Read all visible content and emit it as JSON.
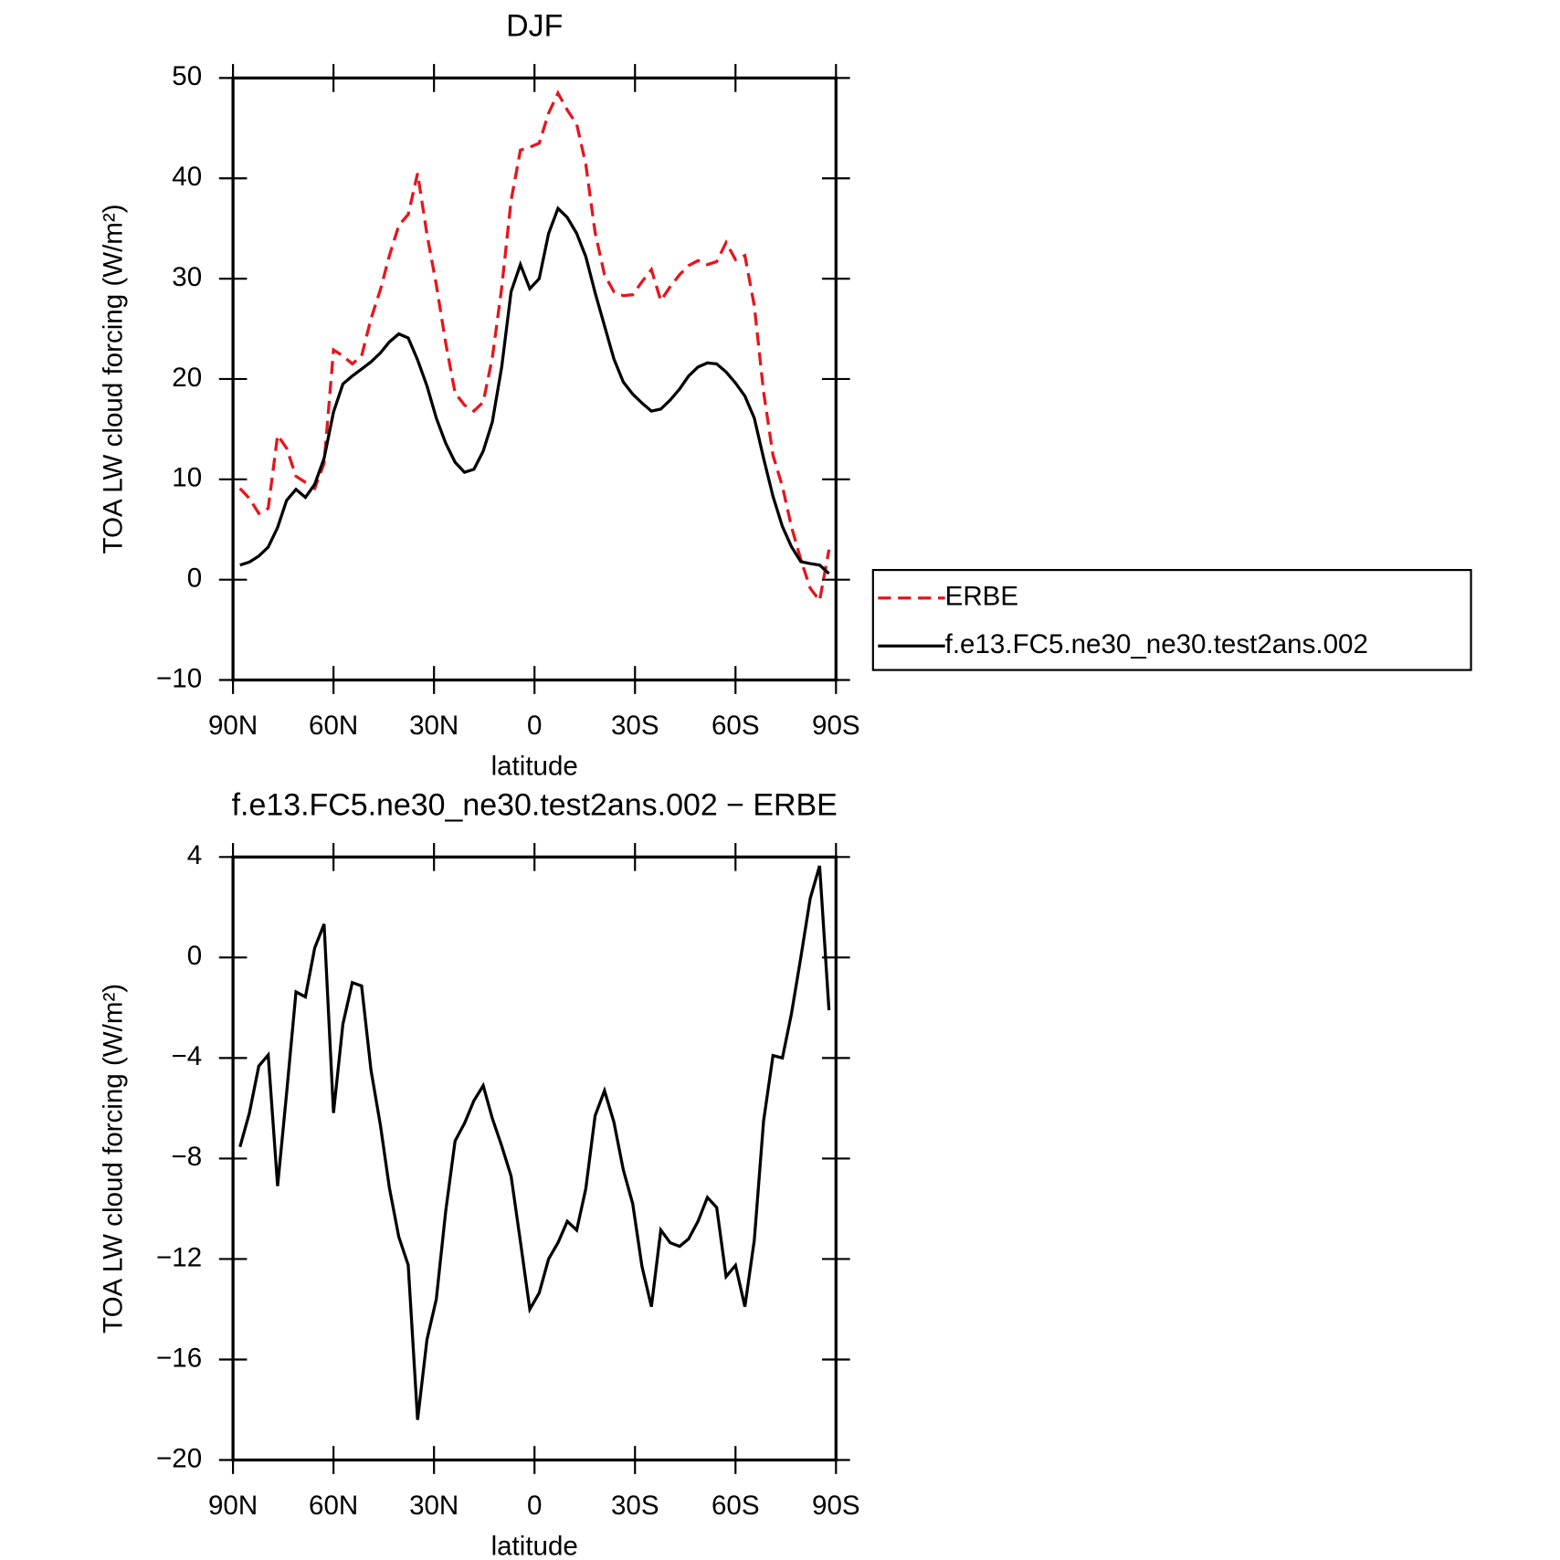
{
  "chart_data": [
    {
      "type": "line",
      "title": "DJF",
      "xlabel": "latitude",
      "ylabel": "TOA LW cloud forcing (W/m²)",
      "x": [
        87.9,
        85.1,
        82.3,
        79.5,
        76.7,
        74.0,
        71.2,
        68.4,
        65.6,
        62.8,
        60.0,
        57.2,
        54.4,
        51.6,
        48.8,
        46.0,
        43.3,
        40.5,
        37.7,
        34.9,
        32.1,
        29.3,
        26.5,
        23.7,
        20.9,
        18.1,
        15.3,
        12.6,
        9.8,
        7.0,
        4.2,
        1.4,
        -1.4,
        -4.2,
        -7.0,
        -9.8,
        -12.6,
        -15.3,
        -18.1,
        -20.9,
        -23.7,
        -26.5,
        -29.3,
        -32.1,
        -34.9,
        -37.7,
        -40.5,
        -43.3,
        -46.0,
        -48.8,
        -51.6,
        -54.4,
        -57.2,
        -60.0,
        -62.8,
        -65.6,
        -68.4,
        -71.2,
        -74.0,
        -76.7,
        -79.5,
        -82.3,
        -85.1,
        -87.9
      ],
      "series": [
        {
          "name": "ERBE",
          "color": "#e8141c",
          "dash": "dashed",
          "values": [
            9.1,
            8.1,
            6.6,
            7.1,
            14.4,
            13.1,
            10.3,
            9.7,
            9.1,
            11.6,
            22.9,
            22.3,
            21.5,
            22.3,
            26.0,
            28.9,
            32.3,
            35.3,
            36.4,
            40.5,
            34.4,
            29.4,
            23.6,
            18.6,
            17.4,
            16.8,
            17.7,
            22.1,
            29.1,
            37.8,
            42.8,
            43.1,
            43.5,
            46.5,
            48.5,
            46.8,
            45.4,
            41.4,
            34.6,
            30.4,
            28.7,
            28.3,
            28.4,
            29.7,
            30.9,
            27.8,
            29.2,
            30.4,
            31.3,
            31.8,
            31.4,
            31.7,
            33.6,
            31.9,
            32.3,
            27.3,
            18.7,
            12.4,
            9.3,
            5.3,
            2.0,
            -0.85,
            -2.1,
            3.0
          ]
        },
        {
          "name": "f.e13.FC5.ne30_ne30.test2ans.002",
          "color": "#000000",
          "dash": "solid",
          "values": [
            1.45,
            1.75,
            2.35,
            3.25,
            5.2,
            7.9,
            9.0,
            8.2,
            9.5,
            12.1,
            16.7,
            19.5,
            20.3,
            21.0,
            21.7,
            22.6,
            23.7,
            24.5,
            24.1,
            21.9,
            19.3,
            16.1,
            13.6,
            11.7,
            10.7,
            11.0,
            12.8,
            15.7,
            21.2,
            28.7,
            31.4,
            29.0,
            30.0,
            34.5,
            37.0,
            36.1,
            34.5,
            32.2,
            28.6,
            25.3,
            22.0,
            19.7,
            18.5,
            17.6,
            16.8,
            17.0,
            17.9,
            19.0,
            20.3,
            21.2,
            21.6,
            21.5,
            20.7,
            19.6,
            18.3,
            16.1,
            12.1,
            8.3,
            5.3,
            3.3,
            1.8,
            1.6,
            1.45,
            0.6
          ]
        }
      ],
      "xlim": [
        90,
        -90
      ],
      "xticks": [
        {
          "value": 90,
          "label": "90N"
        },
        {
          "value": 60,
          "label": "60N"
        },
        {
          "value": 30,
          "label": "30N"
        },
        0,
        {
          "value": -30,
          "label": "30S"
        },
        {
          "value": -60,
          "label": "60S"
        },
        {
          "value": -90,
          "label": "90S"
        }
      ],
      "ylim": [
        -10,
        50
      ],
      "yticks": [
        {
          "value": -10,
          "label": "−10"
        },
        0,
        10,
        20,
        30,
        40,
        50
      ],
      "legend": "outside right"
    },
    {
      "type": "line",
      "title": "f.e13.FC5.ne30_ne30.test2ans.002 − ERBE",
      "xlabel": "latitude",
      "ylabel": "TOA LW cloud forcing (W/m²)",
      "x": [
        87.9,
        85.1,
        82.3,
        79.5,
        76.7,
        74.0,
        71.2,
        68.4,
        65.6,
        62.8,
        60.0,
        57.2,
        54.4,
        51.6,
        48.8,
        46.0,
        43.3,
        40.5,
        37.7,
        34.9,
        32.1,
        29.3,
        26.5,
        23.7,
        20.9,
        18.1,
        15.3,
        12.6,
        9.8,
        7.0,
        4.2,
        1.4,
        -1.4,
        -4.2,
        -7.0,
        -9.8,
        -12.6,
        -15.3,
        -18.1,
        -20.9,
        -23.7,
        -26.5,
        -29.3,
        -32.1,
        -34.9,
        -37.7,
        -40.5,
        -43.3,
        -46.0,
        -48.8,
        -51.6,
        -54.4,
        -57.2,
        -60.0,
        -62.8,
        -65.6,
        -68.4,
        -71.2,
        -74.0,
        -76.7,
        -79.5,
        -82.3,
        -85.1,
        -87.9
      ],
      "series": [
        {
          "color": "#000000",
          "dash": "solid",
          "values": [
            -7.54,
            -6.19,
            -4.32,
            -3.88,
            -9.1,
            -5.4,
            -1.37,
            -1.57,
            0.38,
            1.33,
            -6.19,
            -2.65,
            -1.0,
            -1.13,
            -4.48,
            -6.67,
            -9.17,
            -11.12,
            -12.24,
            -18.4,
            -15.2,
            -13.6,
            -10.1,
            -7.3,
            -6.6,
            -5.7,
            -5.1,
            -6.4,
            -7.5,
            -8.7,
            -11.3,
            -14.0,
            -13.35,
            -12.0,
            -11.35,
            -10.5,
            -10.85,
            -9.2,
            -6.3,
            -5.3,
            -6.55,
            -8.45,
            -9.8,
            -12.3,
            -13.9,
            -10.85,
            -11.35,
            -11.5,
            -11.2,
            -10.5,
            -9.55,
            -9.95,
            -12.7,
            -12.25,
            -13.9,
            -11.25,
            -6.5,
            -3.9,
            -4.0,
            -2.25,
            0.0,
            2.35,
            3.65,
            -2.1
          ]
        }
      ],
      "xlim": [
        90,
        -90
      ],
      "xticks": [
        {
          "value": 90,
          "label": "90N"
        },
        {
          "value": 60,
          "label": "60N"
        },
        {
          "value": 30,
          "label": "30N"
        },
        0,
        {
          "value": -30,
          "label": "30S"
        },
        {
          "value": -60,
          "label": "60S"
        },
        {
          "value": -90,
          "label": "90S"
        }
      ],
      "ylim": [
        -20,
        4
      ],
      "yticks": [
        {
          "value": -20,
          "label": "−20"
        },
        {
          "value": -16,
          "label": "−16"
        },
        {
          "value": -12,
          "label": "−12"
        },
        {
          "value": -8,
          "label": "−8"
        },
        {
          "value": -4,
          "label": "−4"
        },
        0,
        4
      ]
    }
  ]
}
